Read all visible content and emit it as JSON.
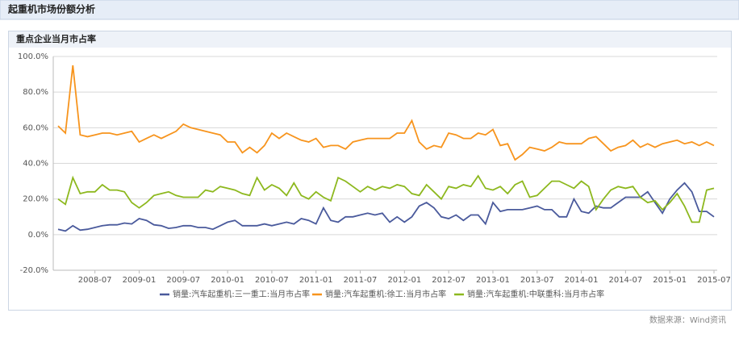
{
  "header": {
    "title": "起重机市场份额分析"
  },
  "source": "数据来源：Wind资讯",
  "chart_data": {
    "type": "line",
    "title": "重点企业当月市占率",
    "categories": [
      null,
      null,
      null,
      null,
      null,
      "2008-07",
      null,
      null,
      null,
      null,
      null,
      "2009-01",
      null,
      null,
      null,
      null,
      null,
      "2009-07",
      null,
      null,
      null,
      null,
      null,
      "2010-01",
      null,
      null,
      null,
      null,
      null,
      "2010-07",
      null,
      null,
      null,
      null,
      null,
      "2011-01",
      null,
      null,
      null,
      null,
      null,
      "2011-07",
      null,
      null,
      null,
      null,
      null,
      "2012-01",
      null,
      null,
      null,
      null,
      null,
      "2012-07",
      null,
      null,
      null,
      null,
      null,
      "2013-01",
      null,
      null,
      null,
      null,
      null,
      "2013-07",
      null,
      null,
      null,
      null,
      null,
      "2014-01",
      null,
      null,
      null,
      null,
      null,
      "2014-07",
      null,
      null,
      null,
      null,
      null,
      "2015-01",
      null,
      null,
      null,
      null,
      null,
      "2015-07"
    ],
    "series": [
      {
        "name": "销量:汽车起重机:三一重工:当月市占率",
        "color": "#4a5a9c",
        "values": [
          3,
          2,
          5,
          2.5,
          3,
          4,
          5,
          5.5,
          5.5,
          6.5,
          6,
          9,
          8,
          5.5,
          5,
          3.5,
          4,
          5,
          5,
          4,
          4,
          3,
          5,
          7,
          8,
          5,
          5,
          5,
          6,
          5,
          6,
          7,
          6,
          9,
          8,
          6,
          15,
          8,
          7,
          10,
          10,
          11,
          12,
          11,
          12,
          7,
          10,
          7,
          10,
          16,
          18,
          15,
          10,
          9,
          11,
          8,
          11,
          11,
          6,
          18,
          13,
          14,
          14,
          14,
          15,
          16,
          14,
          14,
          10,
          10,
          20,
          13,
          12,
          16,
          15,
          15,
          18,
          21,
          21,
          21,
          24,
          18,
          12,
          20,
          25,
          29,
          24,
          13,
          13,
          10
        ]
      },
      {
        "name": "销量:汽车起重机:徐工:当月市占率",
        "color": "#f7941d",
        "values": [
          61,
          57,
          95,
          56,
          55,
          56,
          57,
          57,
          56,
          57,
          58,
          52,
          54,
          56,
          54,
          56,
          58,
          62,
          60,
          59,
          58,
          57,
          56,
          52,
          52,
          46,
          49,
          46,
          50,
          57,
          54,
          57,
          55,
          53,
          52,
          54,
          49,
          50,
          50,
          48,
          52,
          53,
          54,
          54,
          54,
          54,
          57,
          57,
          64,
          52,
          48,
          50,
          49,
          57,
          56,
          54,
          54,
          57,
          56,
          59,
          50,
          51,
          42,
          45,
          49,
          48,
          47,
          49,
          52,
          51,
          51,
          51,
          54,
          55,
          51,
          47,
          49,
          50,
          53,
          49,
          51,
          49,
          51,
          52,
          53,
          51,
          52,
          50,
          52,
          50
        ]
      },
      {
        "name": "销量:汽车起重机:中联重科:当月市占率",
        "color": "#8db81e",
        "values": [
          20,
          17,
          32,
          23,
          24,
          24,
          28,
          25,
          25,
          24,
          18,
          15,
          18,
          22,
          23,
          24,
          22,
          21,
          21,
          21,
          25,
          24,
          27,
          26,
          25,
          23,
          22,
          32,
          25,
          28,
          26,
          22,
          29,
          22,
          20,
          24,
          21,
          19,
          32,
          30,
          27,
          24,
          27,
          25,
          27,
          26,
          28,
          27,
          23,
          22,
          28,
          24,
          20,
          27,
          26,
          28,
          27,
          33,
          26,
          25,
          27,
          23,
          28,
          30,
          21,
          22,
          26,
          30,
          30,
          28,
          26,
          30,
          27,
          14,
          20,
          25,
          27,
          26,
          27,
          21,
          18,
          19,
          14,
          18,
          23,
          16,
          7,
          7,
          25,
          26
        ]
      }
    ],
    "ylim": [
      -20,
      100
    ],
    "yticks": [
      {
        "value": -20,
        "label": "-20.0%"
      },
      {
        "value": 0,
        "label": "0.0%"
      },
      {
        "value": 20,
        "label": "20.0%"
      },
      {
        "value": 40,
        "label": "40.0%"
      },
      {
        "value": 60,
        "label": "60.0%"
      },
      {
        "value": 80,
        "label": "80.0%"
      },
      {
        "value": 100,
        "label": "100.0%"
      }
    ],
    "grid": true
  }
}
